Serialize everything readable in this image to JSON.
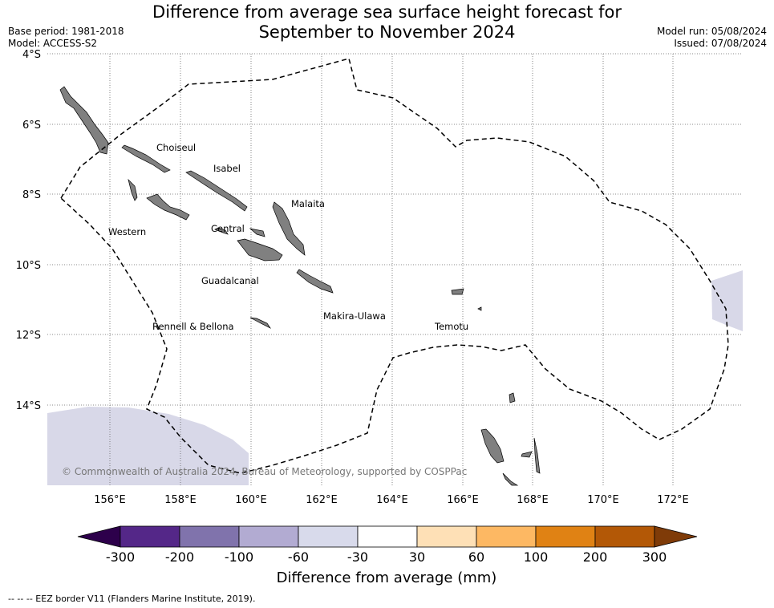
{
  "header": {
    "title_line1": "Difference from average sea surface height forecast for",
    "title_line2": "September to November 2024",
    "base_period": "Base period: 1981-2018",
    "model": "Model: ACCESS-S2",
    "model_run": "Model run: 05/08/2024",
    "issued": "Issued: 07/08/2024"
  },
  "map": {
    "lat_ticks": [
      "4°S",
      "6°S",
      "8°S",
      "10°S",
      "12°S",
      "14°S"
    ],
    "lon_ticks": [
      "156°E",
      "158°E",
      "160°E",
      "162°E",
      "164°E",
      "166°E",
      "168°E",
      "170°E",
      "172°E"
    ],
    "provinces": [
      "Choiseul",
      "Isabel",
      "Malaita",
      "Western",
      "Central",
      "Guadalcanal",
      "Rennell & Bellona",
      "Makira-Ulawa",
      "Temotu"
    ],
    "copyright": "© Commonwealth of Australia 2024, Bureau of Meteorology, supported by COSPPac",
    "colors": {
      "land": "#808080",
      "anomaly_fill": "#d8d8e8",
      "border": "#000000"
    }
  },
  "legend": {
    "title": "Difference from average (mm)",
    "tick_labels": [
      "-300",
      "-200",
      "-100",
      "-60",
      "-30",
      "30",
      "60",
      "100",
      "200",
      "300"
    ],
    "colors": [
      "#2d004b",
      "#542788",
      "#8073ac",
      "#b2abd2",
      "#d8daeb",
      "#ffffff",
      "#fee0b6",
      "#fdb863",
      "#e08214",
      "#b35806",
      "#7f3b08"
    ]
  },
  "footnote": "--  --  -- EEZ border V11 (Flanders Marine Institute, 2019)."
}
